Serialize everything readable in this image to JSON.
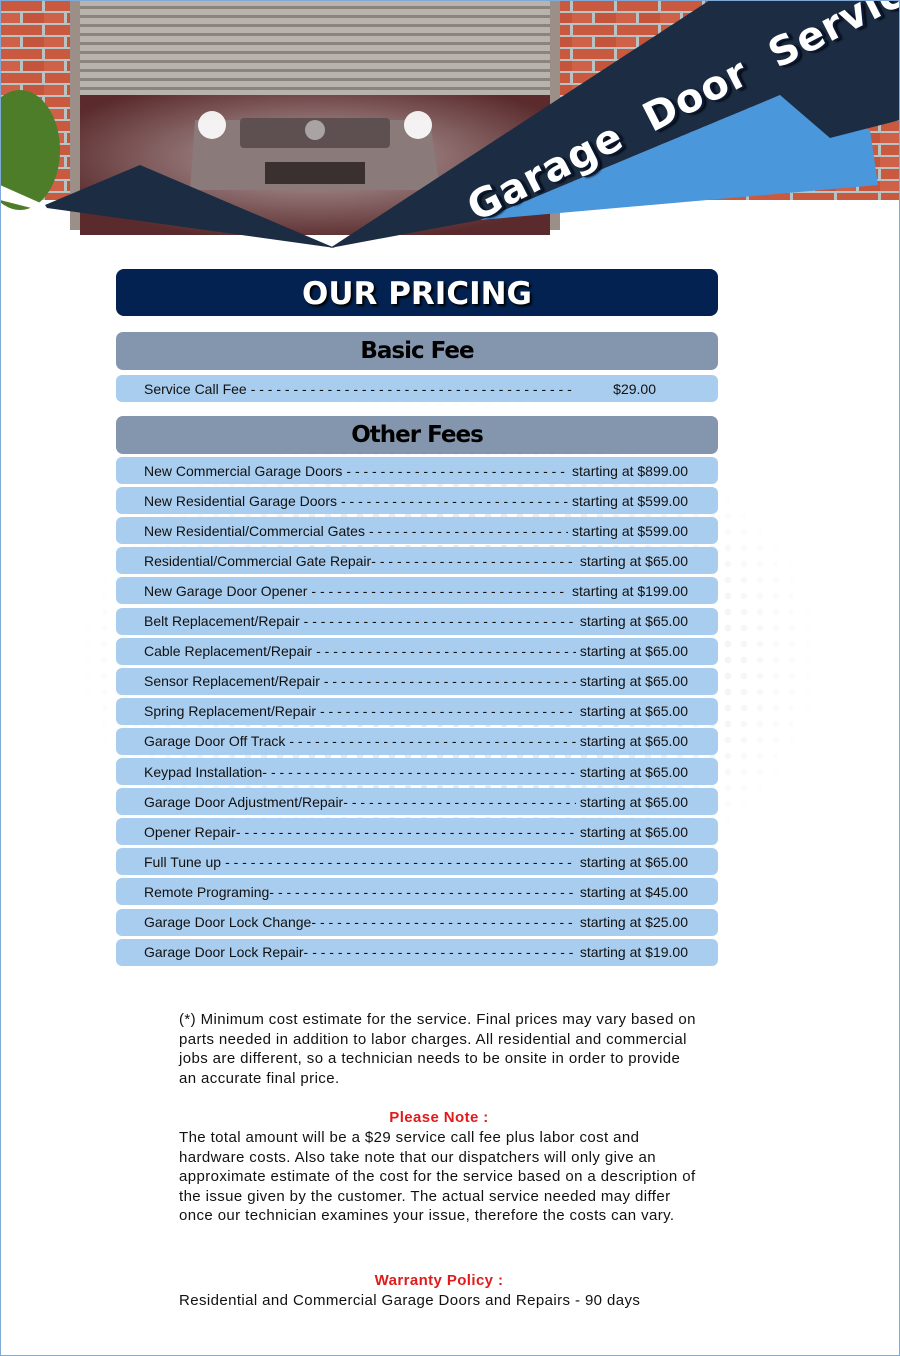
{
  "header": {
    "title": "Garage Door Service"
  },
  "pricing": {
    "title": "OUR PRICING",
    "basic_heading": "Basic Fee",
    "basic": {
      "label": "Service Call Fee",
      "price": "$29.00"
    },
    "other_heading": "Other Fees",
    "other": [
      {
        "label": "New Commercial Garage Doors",
        "price": "starting at $899.00"
      },
      {
        "label": "New Residential Garage Doors",
        "price": "starting at $599.00"
      },
      {
        "label": "New Residential/Commercial Gates",
        "price": "starting at $599.00"
      },
      {
        "label": "Residential/Commercial Gate Repair-",
        "price": "starting at $65.00"
      },
      {
        "label": "New Garage Door Opener",
        "price": "starting at $199.00"
      },
      {
        "label": "Belt Replacement/Repair",
        "price": "starting at $65.00"
      },
      {
        "label": "Cable Replacement/Repair",
        "price": "starting at $65.00"
      },
      {
        "label": "Sensor Replacement/Repair",
        "price": "starting at $65.00"
      },
      {
        "label": "Spring Replacement/Repair",
        "price": "starting at $65.00"
      },
      {
        "label": "Garage Door Off Track",
        "price": "starting at $65.00"
      },
      {
        "label": "Keypad Installation-",
        "price": "starting at $65.00"
      },
      {
        "label": "Garage Door Adjustment/Repair-",
        "price": "starting at $65.00"
      },
      {
        "label": "Opener Repair-",
        "price": "starting at $65.00"
      },
      {
        "label": "Full Tune up",
        "price": "starting at $65.00"
      },
      {
        "label": "Remote Programing-",
        "price": "starting at $45.00"
      },
      {
        "label": "Garage Door Lock Change-",
        "price": "starting at $25.00"
      },
      {
        "label": "Garage Door Lock Repair-",
        "price": "starting at $19.00"
      }
    ]
  },
  "notes": {
    "disclaimer": "(*) Minimum cost estimate for the service. Final prices may vary based on parts needed in addition to labor charges. All residential and commercial jobs are different, so a technician needs to be onsite in order to provide an accurate final price.",
    "please_note_heading": "Please Note :",
    "please_note_text": "The total amount will be a $29 service call fee plus labor cost and hardware costs. Also take note that our dispatchers will only give an approximate estimate of the cost for the service based on a description of the issue given by the customer. The actual service needed may differ once our technician examines your issue, therefore the costs can vary.",
    "warranty_heading": "Warranty Policy :",
    "warranty_text": "Residential and Commercial Garage Doors and Repairs - 90 days"
  },
  "colors": {
    "navy": "#032251",
    "header_dark": "#1c2c42",
    "accent_blue": "#4a97dc",
    "row_blue": "#a9cdef",
    "heading_gray": "#8496ad",
    "note_red": "#e01b1b"
  }
}
